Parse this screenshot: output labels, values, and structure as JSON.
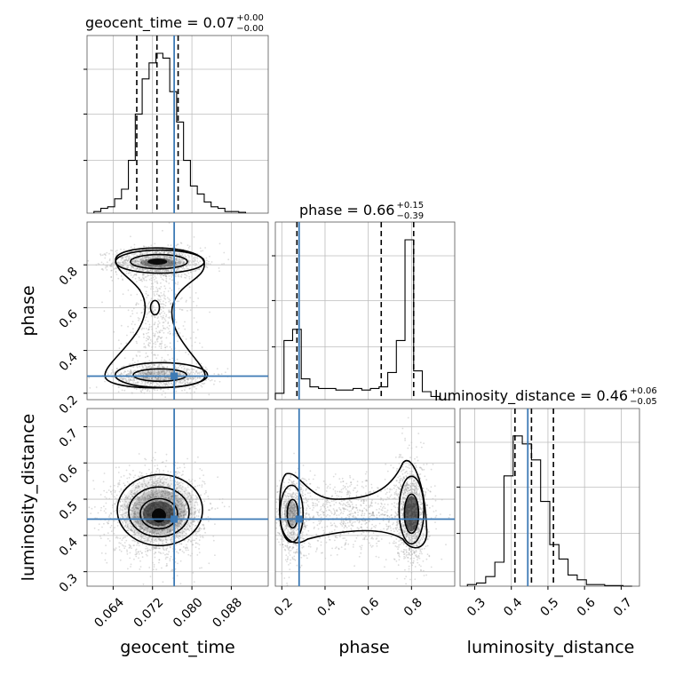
{
  "chart_data": {
    "type": "corner",
    "parameters": [
      "geocent_time",
      "phase",
      "luminosity_distance"
    ],
    "truth": {
      "geocent_time": 0.0764,
      "phase": 0.28,
      "luminosity_distance": 0.445
    },
    "truth_color": "#3d7ab5",
    "titles": [
      {
        "param": "geocent_time",
        "name": "geocent_time = 0.07",
        "sup": "+0.00",
        "sub": "−0.00"
      },
      {
        "param": "phase",
        "name": "phase = 0.66",
        "sup": "+0.15",
        "sub": "−0.39"
      },
      {
        "param": "luminosity_distance",
        "name": "luminosity_distance = 0.46",
        "sup": "+0.06",
        "sub": "−0.05"
      }
    ],
    "axes": {
      "geocent_time": {
        "range": [
          0.0587,
          0.0955
        ],
        "ticks": [
          "0.064",
          "0.072",
          "0.080",
          "0.088"
        ],
        "tick_values": [
          0.064,
          0.072,
          0.08,
          0.088
        ]
      },
      "phase": {
        "range": [
          0.17,
          1.0
        ],
        "ticks": [
          "0.2",
          "0.4",
          "0.6",
          "0.8"
        ],
        "tick_values": [
          0.2,
          0.4,
          0.6,
          0.8
        ]
      },
      "luminosity_distance": {
        "range": [
          0.26,
          0.75
        ],
        "ticks": [
          "0.3",
          "0.4",
          "0.5",
          "0.6",
          "0.7"
        ],
        "tick_values": [
          0.3,
          0.4,
          0.5,
          0.6,
          0.7
        ]
      }
    },
    "xlabels": [
      "geocent_time",
      "phase",
      "luminosity_distance"
    ],
    "ylabels": [
      "phase",
      "luminosity_distance"
    ],
    "histograms": {
      "geocent_time": {
        "edges": [
          0.0601,
          0.0615,
          0.0629,
          0.0643,
          0.0657,
          0.0671,
          0.0685,
          0.0699,
          0.0713,
          0.0727,
          0.0741,
          0.0755,
          0.0769,
          0.0783,
          0.0797,
          0.0811,
          0.0825,
          0.0839,
          0.0853,
          0.0867,
          0.0881,
          0.0895,
          0.0909
        ],
        "counts": [
          0.01,
          0.03,
          0.04,
          0.09,
          0.15,
          0.33,
          0.62,
          0.84,
          0.94,
          1.0,
          0.97,
          0.76,
          0.57,
          0.33,
          0.17,
          0.12,
          0.07,
          0.04,
          0.03,
          0.01,
          0.01,
          0.005
        ],
        "quantiles": [
          0.0688,
          0.0729,
          0.0772
        ]
      },
      "phase": {
        "edges": [
          0.17,
          0.21,
          0.25,
          0.29,
          0.33,
          0.37,
          0.41,
          0.45,
          0.49,
          0.53,
          0.57,
          0.61,
          0.65,
          0.69,
          0.73,
          0.77,
          0.81,
          0.85,
          0.89,
          0.93,
          0.97
        ],
        "counts": [
          0.04,
          0.37,
          0.44,
          0.13,
          0.08,
          0.07,
          0.07,
          0.06,
          0.06,
          0.07,
          0.06,
          0.07,
          0.08,
          0.17,
          0.37,
          1.0,
          0.18,
          0.05,
          0.02,
          0.0
        ],
        "quantiles": [
          0.27,
          0.66,
          0.81
        ]
      },
      "luminosity_distance": {
        "edges": [
          0.28,
          0.305,
          0.33,
          0.355,
          0.38,
          0.405,
          0.43,
          0.455,
          0.48,
          0.505,
          0.53,
          0.555,
          0.58,
          0.605,
          0.63,
          0.655,
          0.68,
          0.705,
          0.73
        ],
        "counts": [
          0.01,
          0.02,
          0.06,
          0.15,
          0.69,
          0.94,
          0.89,
          0.79,
          0.53,
          0.26,
          0.17,
          0.07,
          0.04,
          0.01,
          0.01,
          0.004,
          0.004,
          0.0
        ],
        "quantiles": [
          0.41,
          0.455,
          0.515
        ]
      }
    },
    "scatter_point_color": "#9a9a9a",
    "contour_levels": 3,
    "grid": true
  }
}
